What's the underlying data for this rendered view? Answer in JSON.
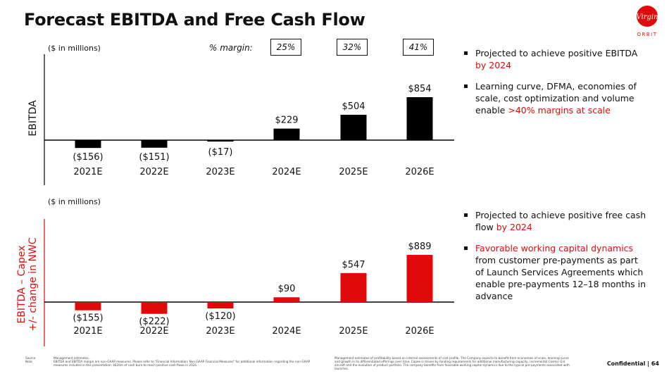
{
  "title": "Forecast EBITDA and Free Cash Flow",
  "logo": {
    "text": "Virgin",
    "subtext": "ORBIT"
  },
  "margins": {
    "label": "% margin:",
    "values": [
      "25%",
      "32%",
      "41%"
    ]
  },
  "chart_data": [
    {
      "type": "bar",
      "ylabel": "EBITDA",
      "units": "($ in millions)",
      "categories": [
        "2021E",
        "2022E",
        "2023E",
        "2024E",
        "2025E",
        "2026E"
      ],
      "values": [
        -156,
        -151,
        -17,
        229,
        504,
        854
      ],
      "labels": [
        "($156)",
        "($151)",
        "($17)",
        "$229",
        "$504",
        "$854"
      ],
      "color": "#000000"
    },
    {
      "type": "bar",
      "ylabel": "EBITDA – Capex +/- change in NWC",
      "ylabel_lines": [
        "EBITDA – Capex",
        "+/- change in NWC"
      ],
      "units": "($ in millions)",
      "categories": [
        "2021E",
        "2022E",
        "2023E",
        "2024E",
        "2025E",
        "2026E"
      ],
      "values": [
        -155,
        -222,
        -120,
        90,
        547,
        889
      ],
      "labels": [
        "($155)",
        "($222)",
        "($120)",
        "$90",
        "$547",
        "$889"
      ],
      "color": "#e10a0a"
    }
  ],
  "bullets_top": [
    {
      "text": "Projected to achieve positive EBITDA ",
      "highlight": "by 2024"
    },
    {
      "text": "Learning curve, DFMA, economies of scale, cost optimization and volume enable ",
      "highlight": ">40% margins at scale"
    }
  ],
  "bullets_bottom": [
    {
      "text": "Projected to achieve positive free cash flow ",
      "highlight": "by 2024"
    },
    {
      "highlight": "Favorable working capital dynamics",
      "text": " from customer pre-payments as part of Launch Services Agreements which enable pre-payments 12–18 months in advance"
    }
  ],
  "footer": {
    "source_label": "Source",
    "note_label": "Note",
    "source_text": "Management estimates.",
    "note_text": "EBITDA and EBITDA margin are non-GAAP measures. Please refer to \"Financial Information; Non-GAAP Financial Measures\" for additional information regarding the non-GAAP measures included in this presentation. $620m of cash burn to reach positive cash flows in 2024.",
    "right_text": "Management estimates of profitability based on internal assessments of cost profile. The Company expects to benefit from economies of scale, learning curve and growth in its differentiated offerings over time. Capex is driven by funding requirements for additional manufacturing capacity, incremental Cosmic Girl aircraft and the evolution of product portfolio. The company benefits from favorable working capital dynamics due to the typical pre-payments associated with launches.",
    "confidential": "Confidential",
    "page": "64"
  }
}
